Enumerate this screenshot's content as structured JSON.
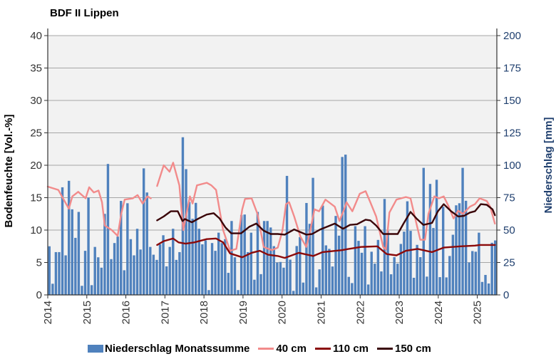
{
  "title": "BDF II Lippen",
  "colors": {
    "bars": "#4f81bd",
    "cm40": "#f28b8b",
    "cm110": "#8b0a0a",
    "cm150": "#3a0408",
    "plot_bg": "#f2f2f2",
    "grid": "#a6a6a6",
    "right_axis": "#1f3f6e"
  },
  "chart_data": {
    "type": "bar+line",
    "title": "BDF II Lippen",
    "ylabel_left": "Bodenfeuchte [Vol.-%]",
    "ylabel_right": "Niederschlag [mm]",
    "ylim_left": [
      0,
      40
    ],
    "ylim_right": [
      0,
      200
    ],
    "yticks_left": [
      "0",
      "5",
      "10",
      "15",
      "20",
      "25",
      "30",
      "35",
      "40"
    ],
    "yticks_right": [
      "0",
      "25",
      "50",
      "75",
      "100",
      "125",
      "150",
      "175",
      "200"
    ],
    "xticks": [
      "2014",
      "2015",
      "2016",
      "2017",
      "2018",
      "2019",
      "2020",
      "2021",
      "2022",
      "2023",
      "2024",
      "2025"
    ],
    "xlim": [
      2014,
      2025.5
    ],
    "grid": "horizontal",
    "legend_position": "bottom",
    "bars": {
      "name": "Niederschlag Monatssumme",
      "axis": "right",
      "months": [
        "2014-01",
        "2014-02",
        "2014-03",
        "2014-04",
        "2014-05",
        "2014-06",
        "2014-07",
        "2014-08",
        "2014-09",
        "2014-10",
        "2014-11",
        "2014-12",
        "2015-01",
        "2015-02",
        "2015-03",
        "2015-04",
        "2015-05",
        "2015-06",
        "2015-07",
        "2015-08",
        "2015-09",
        "2015-10",
        "2015-11",
        "2015-12",
        "2016-01",
        "2016-02",
        "2016-03",
        "2016-04",
        "2016-05",
        "2016-06",
        "2016-07",
        "2016-08",
        "2016-09",
        "2016-10",
        "2016-11",
        "2016-12",
        "2017-01",
        "2017-02",
        "2017-03",
        "2017-04",
        "2017-05",
        "2017-06",
        "2017-07",
        "2017-08",
        "2017-09",
        "2017-10",
        "2017-11",
        "2017-12",
        "2018-01",
        "2018-02",
        "2018-03",
        "2018-04",
        "2018-05",
        "2018-06",
        "2018-07",
        "2018-08",
        "2018-09",
        "2018-10",
        "2018-11",
        "2018-12",
        "2019-01",
        "2019-02",
        "2019-03",
        "2019-04",
        "2019-05",
        "2019-06",
        "2019-07",
        "2019-08",
        "2019-09",
        "2019-10",
        "2019-11",
        "2019-12",
        "2020-01",
        "2020-02",
        "2020-03",
        "2020-04",
        "2020-05",
        "2020-06",
        "2020-07",
        "2020-08",
        "2020-09",
        "2020-10",
        "2020-11",
        "2020-12",
        "2021-01",
        "2021-02",
        "2021-03",
        "2021-04",
        "2021-05",
        "2021-06",
        "2021-07",
        "2021-08",
        "2021-09",
        "2021-10",
        "2021-11",
        "2021-12",
        "2022-01",
        "2022-02",
        "2022-03",
        "2022-04",
        "2022-05",
        "2022-06",
        "2022-07",
        "2022-08",
        "2022-09",
        "2022-10",
        "2022-11",
        "2022-12",
        "2023-01",
        "2023-02",
        "2023-03",
        "2023-04",
        "2023-05",
        "2023-06",
        "2023-07",
        "2023-08",
        "2023-09",
        "2023-10",
        "2023-11",
        "2023-12",
        "2024-01",
        "2024-02",
        "2024-03",
        "2024-04",
        "2024-05",
        "2024-06",
        "2024-07",
        "2024-08",
        "2024-09",
        "2024-10",
        "2024-11",
        "2024-12",
        "2025-01",
        "2025-02",
        "2025-03",
        "2025-04",
        "2025-05",
        "2025-06"
      ],
      "values": [
        37.5,
        8.6,
        33,
        33,
        83,
        30.5,
        88,
        66,
        44,
        64,
        7,
        34,
        75,
        7.5,
        37,
        29,
        21,
        62.5,
        101,
        27.6,
        40,
        45,
        72.5,
        19,
        70.7,
        43,
        30.5,
        51,
        35,
        97.6,
        79,
        37,
        31,
        27,
        39,
        46,
        22,
        37,
        51,
        27,
        33,
        121.6,
        97,
        71.7,
        58.7,
        71,
        51,
        39,
        42,
        3.7,
        40,
        34,
        48,
        40,
        43,
        17,
        57,
        29,
        3.7,
        61.6,
        62,
        33,
        48,
        11.7,
        64,
        16,
        57,
        57,
        52,
        37.6,
        25,
        25.4,
        21,
        91.8,
        27.2,
        3.1,
        37.7,
        44.6,
        9.5,
        70.9,
        54.8,
        90.3,
        5.8,
        19.7,
        68.9,
        38.2,
        35.5,
        21.9,
        60.9,
        45.7,
        106.4,
        108.2,
        13.9,
        9.1,
        53,
        41.7,
        32.5,
        53,
        8,
        33.3,
        24.1,
        42.4,
        18.1,
        74,
        49.4,
        15.9,
        29.1,
        24.1,
        39.3,
        48.8,
        72.2,
        49.4,
        13.2,
        38.6,
        29.1,
        98,
        14.1,
        85.6,
        51.6,
        88.8,
        13.7,
        68,
        13.5,
        30,
        46.4,
        69.1,
        70.7,
        98,
        72.6,
        25,
        33.8,
        33.3,
        48,
        10,
        15.4,
        8.8,
        40.2,
        42
      ]
    },
    "series": [
      {
        "name": "40 cm",
        "axis": "left",
        "segments": [
          [
            [
              2014.0,
              16.7
            ],
            [
              2014.27,
              16.2
            ],
            [
              2014.39,
              14.9
            ],
            [
              2014.54,
              13.3
            ],
            [
              2014.63,
              15.2
            ],
            [
              2014.78,
              15.9
            ],
            [
              2014.97,
              14.9
            ],
            [
              2015.06,
              16.6
            ],
            [
              2015.18,
              15.8
            ],
            [
              2015.3,
              16.1
            ],
            [
              2015.39,
              14.3
            ],
            [
              2015.46,
              10.7
            ],
            [
              2015.64,
              10.0
            ],
            [
              2015.79,
              9.1
            ],
            [
              2015.88,
              12.5
            ],
            [
              2015.97,
              14.7
            ],
            [
              2016.18,
              14.9
            ],
            [
              2016.3,
              15.4
            ],
            [
              2016.43,
              14.1
            ],
            [
              2016.55,
              15.2
            ],
            [
              2016.64,
              14.9
            ]
          ],
          [
            [
              2016.8,
              16.8
            ],
            [
              2016.97,
              20.0
            ],
            [
              2017.12,
              19.0
            ],
            [
              2017.21,
              20.4
            ],
            [
              2017.37,
              16.9
            ],
            [
              2017.47,
              10.0
            ],
            [
              2017.64,
              15.2
            ],
            [
              2017.71,
              14.1
            ],
            [
              2017.82,
              16.9
            ],
            [
              2018.07,
              17.3
            ],
            [
              2018.19,
              16.9
            ],
            [
              2018.31,
              16.2
            ],
            [
              2018.49,
              10.0
            ],
            [
              2018.67,
              6.8
            ],
            [
              2018.83,
              7.1
            ],
            [
              2018.98,
              13.2
            ],
            [
              2019.05,
              14.8
            ],
            [
              2019.22,
              14.9
            ],
            [
              2019.37,
              12.5
            ],
            [
              2019.53,
              7.4
            ],
            [
              2019.74,
              6.9
            ],
            [
              2019.89,
              7.3
            ],
            [
              2020.01,
              9.9
            ],
            [
              2020.1,
              14.0
            ],
            [
              2020.18,
              14.3
            ],
            [
              2020.31,
              12.1
            ],
            [
              2020.47,
              9.0
            ],
            [
              2020.62,
              7.4
            ],
            [
              2020.71,
              9.6
            ],
            [
              2020.83,
              13.2
            ],
            [
              2020.95,
              12.9
            ],
            [
              2021.11,
              14.7
            ],
            [
              2021.35,
              13.6
            ],
            [
              2021.47,
              11.4
            ],
            [
              2021.59,
              13.2
            ],
            [
              2021.65,
              14.3
            ],
            [
              2021.8,
              12.9
            ],
            [
              2021.99,
              15.6
            ],
            [
              2022.14,
              16.0
            ],
            [
              2022.26,
              14.3
            ],
            [
              2022.41,
              12.1
            ],
            [
              2022.59,
              7.4
            ],
            [
              2022.66,
              7.0
            ],
            [
              2022.75,
              12.7
            ],
            [
              2022.93,
              14.7
            ],
            [
              2023.17,
              15.1
            ],
            [
              2023.29,
              14.9
            ],
            [
              2023.41,
              11.8
            ],
            [
              2023.54,
              8.5
            ],
            [
              2023.66,
              8.5
            ],
            [
              2023.75,
              12.5
            ],
            [
              2023.9,
              15.2
            ],
            [
              2024.02,
              14.9
            ],
            [
              2024.14,
              15.2
            ],
            [
              2024.27,
              13.6
            ],
            [
              2024.39,
              11.8
            ],
            [
              2024.51,
              13.0
            ],
            [
              2024.63,
              12.5
            ],
            [
              2024.81,
              13.6
            ],
            [
              2024.94,
              14.0
            ],
            [
              2025.06,
              14.9
            ],
            [
              2025.24,
              14.5
            ],
            [
              2025.33,
              13.6
            ],
            [
              2025.45,
              11.0
            ]
          ]
        ]
      },
      {
        "name": "110 cm",
        "axis": "left",
        "segments": [
          [
            [
              2016.8,
              7.7
            ],
            [
              2016.97,
              8.3
            ],
            [
              2017.21,
              8.7
            ],
            [
              2017.35,
              8.1
            ],
            [
              2017.53,
              7.9
            ],
            [
              2017.75,
              8.1
            ],
            [
              2018.07,
              8.6
            ],
            [
              2018.31,
              8.7
            ],
            [
              2018.49,
              8.1
            ],
            [
              2018.67,
              6.4
            ],
            [
              2018.98,
              5.8
            ],
            [
              2019.22,
              6.5
            ],
            [
              2019.43,
              6.8
            ],
            [
              2019.64,
              6.2
            ],
            [
              2019.89,
              6.0
            ],
            [
              2020.07,
              5.7
            ],
            [
              2020.43,
              6.5
            ],
            [
              2020.8,
              6.0
            ],
            [
              2021.04,
              6.6
            ],
            [
              2021.53,
              6.9
            ],
            [
              2021.71,
              7.1
            ],
            [
              2022.02,
              7.4
            ],
            [
              2022.44,
              7.5
            ],
            [
              2022.68,
              6.3
            ],
            [
              2022.93,
              6.1
            ],
            [
              2023.17,
              6.8
            ],
            [
              2023.47,
              7.1
            ],
            [
              2023.84,
              6.6
            ],
            [
              2024.14,
              7.3
            ],
            [
              2024.57,
              7.5
            ],
            [
              2024.94,
              7.6
            ],
            [
              2025.06,
              7.7
            ],
            [
              2025.45,
              7.7
            ]
          ]
        ]
      },
      {
        "name": "150 cm",
        "axis": "left",
        "segments": [
          [
            [
              2016.8,
              11.5
            ],
            [
              2016.97,
              12.1
            ],
            [
              2017.15,
              12.9
            ],
            [
              2017.33,
              12.9
            ],
            [
              2017.45,
              11.4
            ],
            [
              2017.51,
              11.7
            ],
            [
              2017.69,
              11.2
            ],
            [
              2017.87,
              11.8
            ],
            [
              2018.07,
              12.4
            ],
            [
              2018.25,
              12.6
            ],
            [
              2018.4,
              11.8
            ],
            [
              2018.55,
              10.4
            ],
            [
              2018.7,
              9.5
            ],
            [
              2018.95,
              9.5
            ],
            [
              2019.16,
              10.5
            ],
            [
              2019.34,
              11.0
            ],
            [
              2019.53,
              9.9
            ],
            [
              2019.71,
              9.4
            ],
            [
              2019.89,
              9.4
            ],
            [
              2020.07,
              9.3
            ],
            [
              2020.31,
              10.1
            ],
            [
              2020.62,
              9.3
            ],
            [
              2020.77,
              9.4
            ],
            [
              2020.98,
              10.1
            ],
            [
              2021.35,
              11.0
            ],
            [
              2021.56,
              10.2
            ],
            [
              2021.74,
              10.8
            ],
            [
              2021.92,
              10.9
            ],
            [
              2022.14,
              11.6
            ],
            [
              2022.26,
              11.5
            ],
            [
              2022.41,
              10.7
            ],
            [
              2022.59,
              9.4
            ],
            [
              2022.96,
              9.4
            ],
            [
              2023.11,
              11.0
            ],
            [
              2023.29,
              12.8
            ],
            [
              2023.44,
              11.8
            ],
            [
              2023.62,
              10.8
            ],
            [
              2023.84,
              11.1
            ],
            [
              2023.99,
              12.9
            ],
            [
              2024.14,
              14.0
            ],
            [
              2024.33,
              12.9
            ],
            [
              2024.51,
              12.1
            ],
            [
              2024.66,
              12.2
            ],
            [
              2024.81,
              12.7
            ],
            [
              2024.94,
              12.9
            ],
            [
              2025.09,
              14.0
            ],
            [
              2025.24,
              13.9
            ],
            [
              2025.39,
              13.2
            ],
            [
              2025.45,
              12.3
            ]
          ]
        ]
      }
    ]
  },
  "legend": {
    "bars": "Niederschlag Monatssumme",
    "cm40": "40 cm",
    "cm110": "110 cm",
    "cm150": "150 cm"
  }
}
